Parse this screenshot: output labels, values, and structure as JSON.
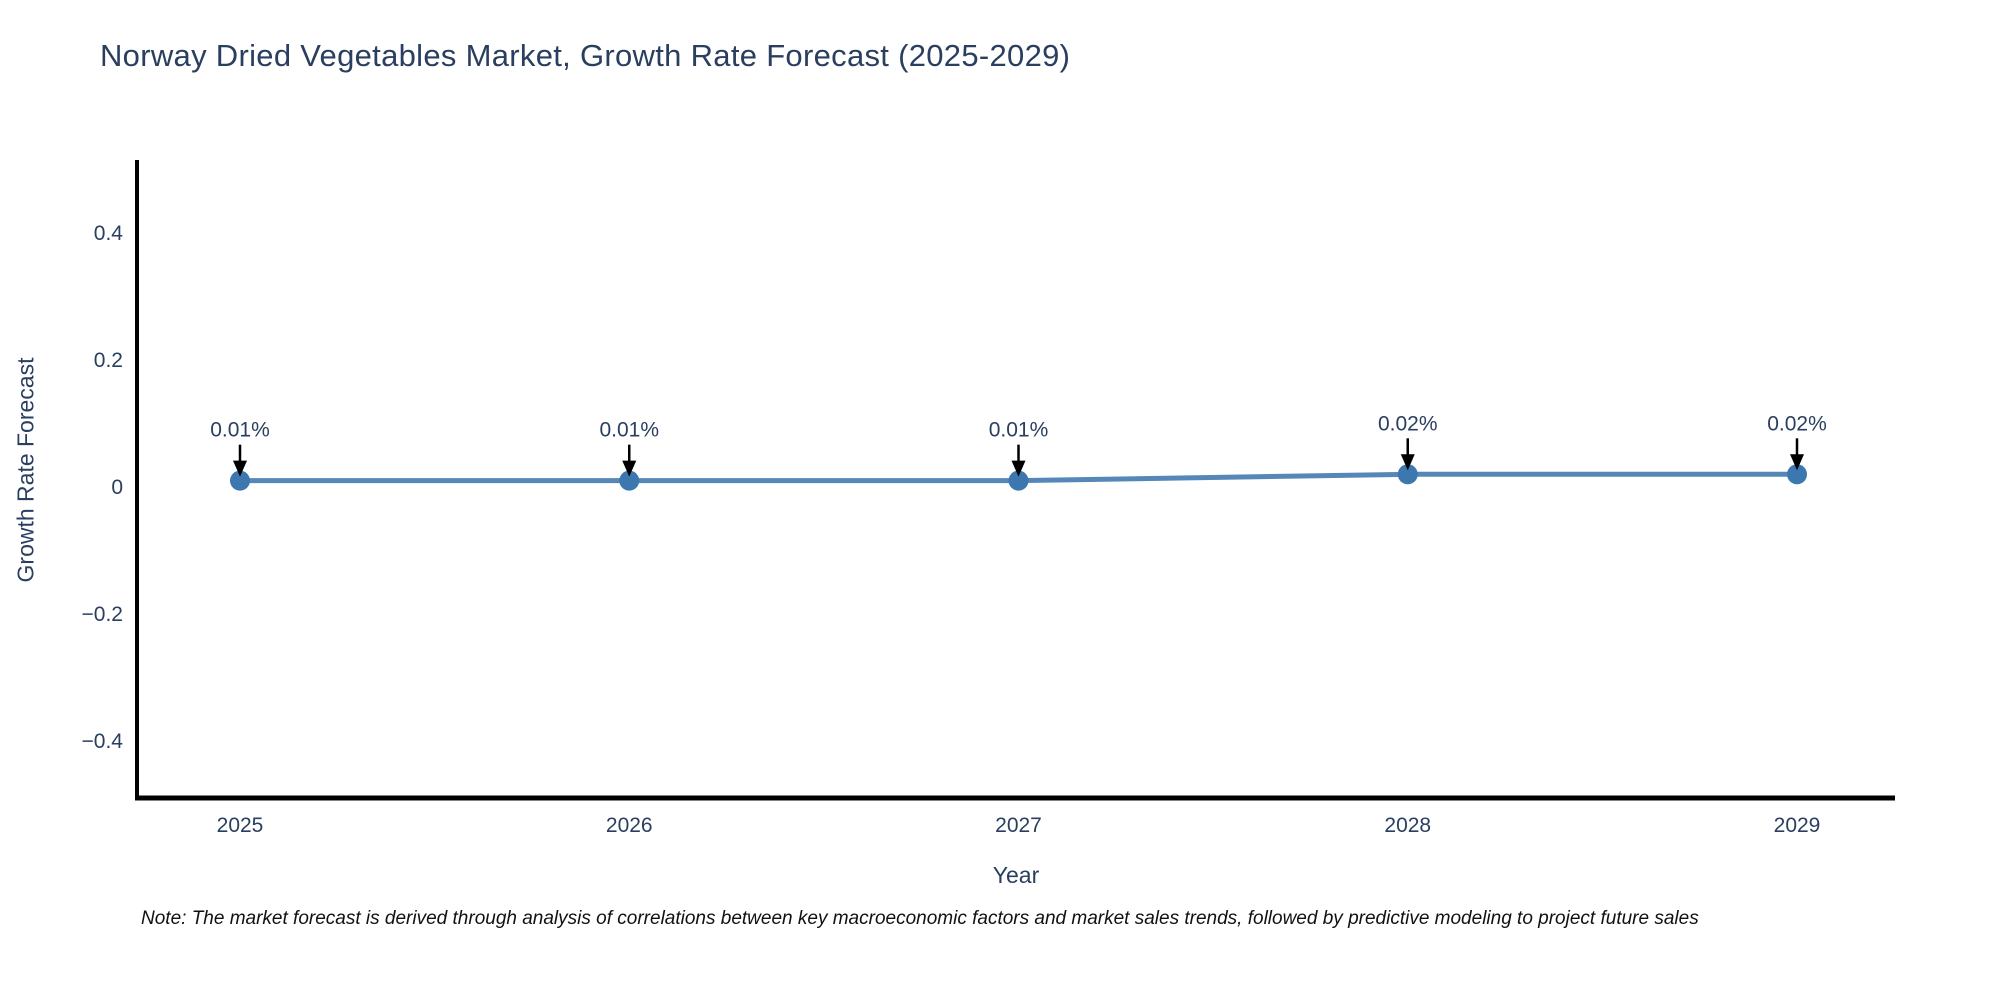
{
  "title": "Norway Dried Vegetables Market, Growth Rate Forecast (2025-2029)",
  "note": "Note: The market forecast is derived through analysis of correlations between key macroeconomic factors and market sales trends, followed by predictive modeling to project future sales",
  "colors": {
    "text": "#2a3f5f",
    "axis": "#000000",
    "line": "#5588b8",
    "marker": "#3c77b0",
    "annotation_arrow": "#000000",
    "background": "#ffffff"
  },
  "chart_data": {
    "type": "line",
    "title": "Norway Dried Vegetables Market, Growth Rate Forecast (2025-2029)",
    "xlabel": "Year",
    "ylabel": "Growth Rate Forecast",
    "x": [
      2025,
      2026,
      2027,
      2028,
      2029
    ],
    "y": [
      0.01,
      0.01,
      0.01,
      0.02,
      0.02
    ],
    "point_labels": [
      "0.01%",
      "0.01%",
      "0.01%",
      "0.02%",
      "0.02%"
    ],
    "xtick_labels": [
      "2025",
      "2026",
      "2027",
      "2028",
      "2029"
    ],
    "yticks": [
      0.4,
      0.2,
      0,
      -0.2,
      -0.4
    ],
    "ytick_labels": [
      "0.4",
      "0.2",
      "0",
      "−0.2",
      "−0.4"
    ],
    "ylim": [
      -0.52,
      0.52
    ],
    "grid": false,
    "legend": null,
    "annotation_style": "black-down-arrows"
  }
}
